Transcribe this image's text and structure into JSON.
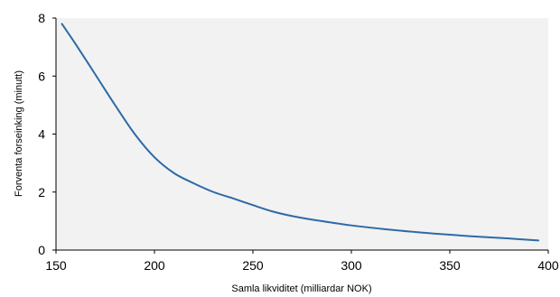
{
  "chart_data": {
    "type": "line",
    "title": "",
    "xlabel": "Samla likviditet (milliardar NOK)",
    "ylabel": "Forventa forseinking  (minutt)",
    "xlim": [
      150,
      400
    ],
    "ylim": [
      0,
      8
    ],
    "xticks": [
      150,
      200,
      250,
      300,
      350,
      400
    ],
    "yticks": [
      0,
      2,
      4,
      6,
      8
    ],
    "grid": false,
    "legend": "none",
    "plot_background": "#f2f2f2",
    "series": [
      {
        "color": "#2e6aa6",
        "x": [
          153,
          160,
          170,
          180,
          190,
          200,
          210,
          220,
          230,
          240,
          250,
          260,
          270,
          280,
          300,
          320,
          340,
          360,
          380,
          395
        ],
        "y": [
          7.8,
          7.1,
          6.05,
          5.0,
          4.0,
          3.2,
          2.65,
          2.3,
          2.0,
          1.78,
          1.55,
          1.33,
          1.17,
          1.05,
          0.85,
          0.7,
          0.58,
          0.48,
          0.4,
          0.33
        ]
      }
    ]
  }
}
